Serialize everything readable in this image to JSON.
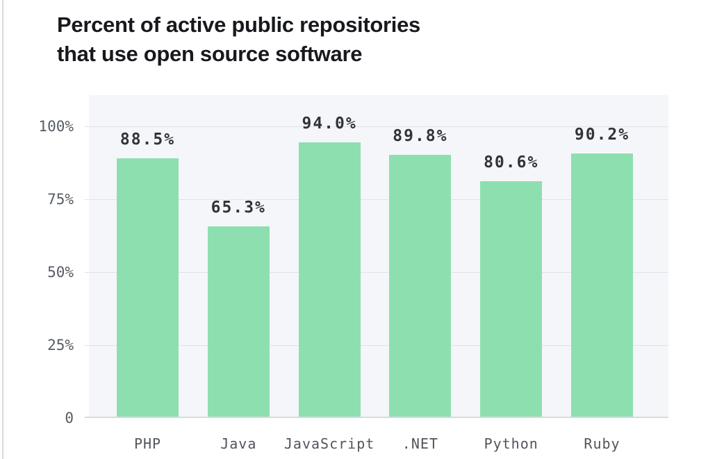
{
  "page": {
    "title_line1": "Percent of active public repositories",
    "title_line2": "that use open source software"
  },
  "chart_data": {
    "type": "bar",
    "title": "Percent of active public repositories that use open source software",
    "categories": [
      "PHP",
      "Java",
      "JavaScript",
      ".NET",
      "Python",
      "Ruby"
    ],
    "values": [
      88.5,
      65.3,
      94.0,
      89.8,
      80.6,
      90.2
    ],
    "value_labels": [
      "88.5%",
      "65.3%",
      "94.0%",
      "89.8%",
      "80.6%",
      "90.2%"
    ],
    "y_ticks": [
      {
        "value": 100,
        "label": "100%"
      },
      {
        "value": 75,
        "label": "75%"
      },
      {
        "value": 50,
        "label": "50%"
      },
      {
        "value": 25,
        "label": "25%"
      },
      {
        "value": 0,
        "label": "0"
      }
    ],
    "ylim": [
      0,
      111
    ],
    "grid": true,
    "legend": "none",
    "xlabel": "",
    "ylabel": ""
  },
  "colors": {
    "bar": "#8edfb0",
    "plot_bg": "#f5f6f9",
    "grid": "#e0e2e7",
    "baseline": "#d8dade",
    "axis_text": "#575c63",
    "value_text": "#2f343a",
    "category_text": "#50555c",
    "title_text": "#17191d",
    "page_border": "#d9d9d9",
    "page_bg": "#ffffff"
  }
}
